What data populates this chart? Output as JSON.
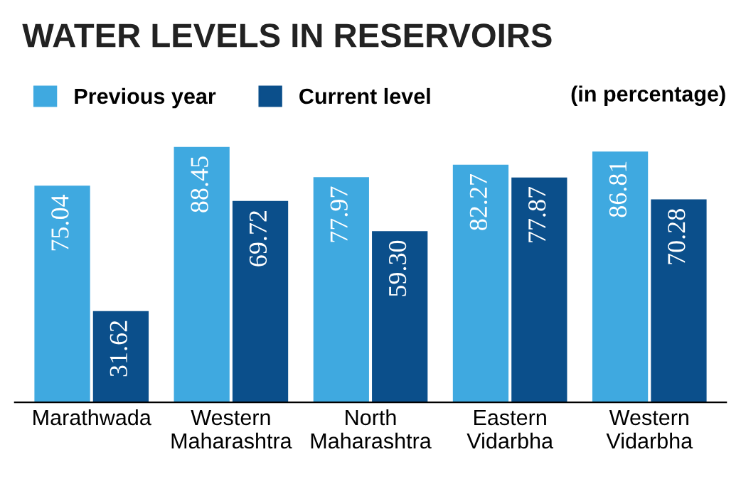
{
  "chart_data": {
    "type": "bar",
    "title": "WATER LEVELS IN RESERVOIRS",
    "categories": [
      "Marathwada",
      "Western\nMaharashtra",
      "North\nMaharashtra",
      "Eastern\nVidarbha",
      "Western\nVidarbha"
    ],
    "series": [
      {
        "name": "Previous year",
        "color": "#3fa9e0",
        "values": [
          75.04,
          88.45,
          77.97,
          82.27,
          86.81
        ],
        "value_labels": [
          "75.04",
          "88.45",
          "77.97",
          "82.27",
          "86.81"
        ]
      },
      {
        "name": "Current level",
        "color": "#0b4f8b",
        "values": [
          31.62,
          69.72,
          59.3,
          77.87,
          70.28
        ],
        "value_labels": [
          "31.62",
          "69.72",
          "59.30",
          "77.87",
          "70.28"
        ]
      }
    ],
    "tick_labels": "x",
    "legend": "top left",
    "annotations": [
      "(in percentage)"
    ]
  }
}
